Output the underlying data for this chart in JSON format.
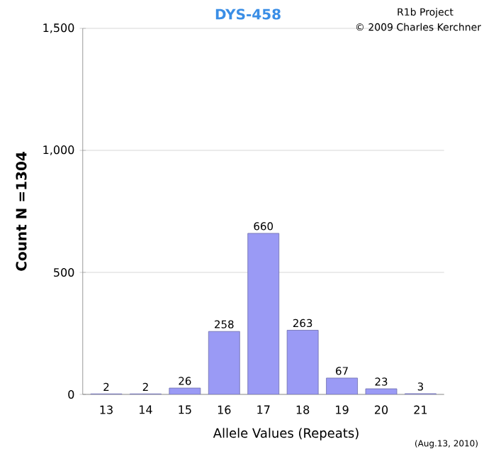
{
  "chart_data": {
    "type": "bar",
    "title": "DYS-458",
    "xlabel": "Allele Values (Repeats)",
    "ylabel": "Count N =1304",
    "categories": [
      "13",
      "14",
      "15",
      "16",
      "17",
      "18",
      "19",
      "20",
      "21"
    ],
    "values": [
      2,
      2,
      26,
      258,
      660,
      263,
      67,
      23,
      3
    ],
    "color": "#9a9af5",
    "ylim": [
      0,
      1500
    ],
    "yticks": [
      0,
      500,
      {
        "value": 1000,
        "label": "1,000"
      },
      {
        "value": 1500,
        "label": "1,500"
      }
    ],
    "grid": "y",
    "data_labels": true,
    "annotations": [
      "R1b Project",
      "© 2009 Charles Kerchner",
      "(Aug.13, 2010)"
    ]
  }
}
